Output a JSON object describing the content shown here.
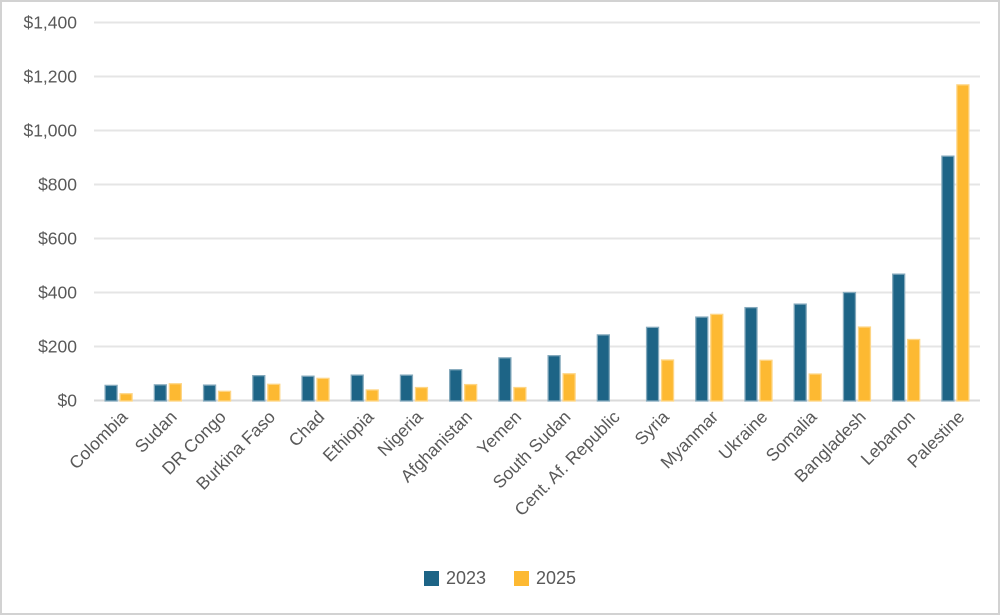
{
  "frame": {
    "background": "#ffffff",
    "border_color": "#d2d2d2"
  },
  "chart_data": {
    "type": "bar",
    "title": "",
    "xlabel": "",
    "ylabel": "",
    "categories": [
      "Colombia",
      "Sudan",
      "DR Congo",
      "Burkina Faso",
      "Chad",
      "Ethiopia",
      "Nigeria",
      "Afghanistan",
      "Yemen",
      "South Sudan",
      "Cent. Af. Republic",
      "Syria",
      "Myanmar",
      "Ukraine",
      "Somalia",
      "Bangladesh",
      "Lebanon",
      "Palestine"
    ],
    "series": [
      {
        "name": "2023",
        "color": "#1d6486",
        "edge_color": "#84a9bc",
        "values": [
          56,
          58,
          57,
          92,
          90,
          94,
          94,
          114,
          158,
          166,
          243,
          271,
          309,
          344,
          357,
          400,
          468,
          905
        ]
      },
      {
        "name": "2025",
        "color": "#fdb932",
        "edge_color": "#fed584",
        "values": [
          25,
          62,
          34,
          60,
          82,
          39,
          48,
          59,
          48,
          99,
          null,
          150,
          319,
          149,
          98,
          272,
          226,
          1169
        ]
      }
    ],
    "ylim": [
      0,
      1400
    ],
    "ytick_step": 200,
    "ytick_labels": [
      "$0",
      "$200",
      "$400",
      "$600",
      "$800",
      "$1,000",
      "$1,200",
      "$1,400"
    ],
    "grid": true,
    "gridline_color": "#e5e5e5",
    "axis_line_color": "#dadada",
    "axis_text_color": "#595959",
    "legend_position": "bottom",
    "x_label_rotation_deg": -45
  },
  "legend": {
    "items": [
      {
        "label": "2023",
        "color": "#1d6486"
      },
      {
        "label": "2025",
        "color": "#fdb932"
      }
    ]
  }
}
